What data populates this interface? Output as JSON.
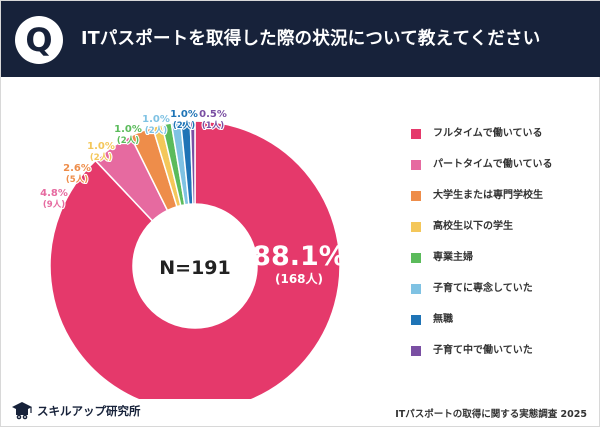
{
  "header": {
    "badge": "Q",
    "title": "ITパスポートを取得した際の状況について教えてください"
  },
  "chart_data": {
    "type": "pie",
    "center_label": "N=191",
    "slices": [
      {
        "label": "フルタイムで働いている",
        "percent": "88.1%",
        "count": "(168人)",
        "value": 168,
        "color": "#e5396b"
      },
      {
        "label": "パートタイムで働いている",
        "percent": "4.8%",
        "count": "(9人)",
        "value": 9,
        "color": "#e66aa0"
      },
      {
        "label": "大学生または専門学校生",
        "percent": "2.6%",
        "count": "(5人)",
        "value": 5,
        "color": "#ee8d4a"
      },
      {
        "label": "高校生以下の学生",
        "percent": "1.0%",
        "count": "(2人)",
        "value": 2,
        "color": "#f4c75a"
      },
      {
        "label": "専業主婦",
        "percent": "1.0%",
        "count": "(2人)",
        "value": 2,
        "color": "#5bbb5b"
      },
      {
        "label": "子育てに専念していた",
        "percent": "1.0%",
        "count": "(2人)",
        "value": 2,
        "color": "#7fc2e3"
      },
      {
        "label": "無職",
        "percent": "1.0%",
        "count": "(2人)",
        "value": 2,
        "color": "#1f74b6"
      },
      {
        "label": "子育て中で働いていた",
        "percent": "0.5%",
        "count": "(1人)",
        "value": 1,
        "color": "#7a4fa3"
      }
    ]
  },
  "footer": {
    "logo_text": "スキルアップ研究所",
    "note": "ITパスポートの取得に関する実態調査 2025"
  },
  "icons": {
    "logo": "graduation-cap-icon"
  }
}
